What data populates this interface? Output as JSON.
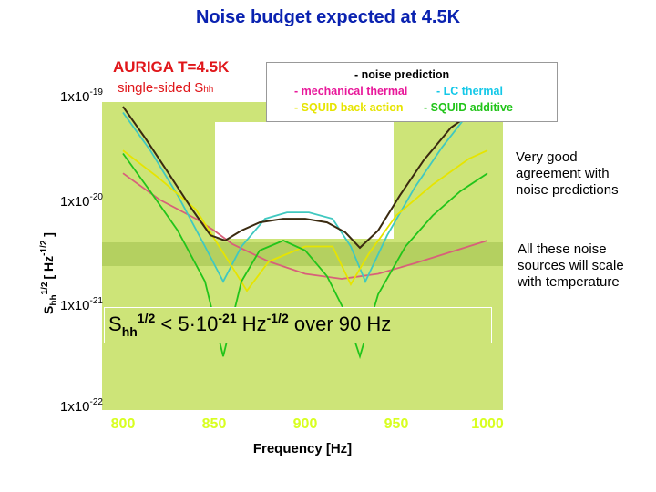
{
  "slide": {
    "title": "Noise budget expected at 4.5K",
    "note1": [
      "Very good",
      "agreement with",
      "noise predictions"
    ],
    "note2": [
      "All these noise",
      "sources will scale",
      "with temperature"
    ]
  },
  "plot": {
    "title": "AURIGA T=4.5K",
    "subtitle_main": "single-sided S",
    "subtitle_sub": "hh",
    "formula": {
      "s": "S",
      "s_sub": "hh",
      "exp1": "1/2",
      "middle": " < 5·10",
      "exp2": "-21",
      "hz": " Hz",
      "exp3": "-1/2",
      "tail": " over 90 Hz"
    }
  },
  "legend": {
    "title": "- noise prediction",
    "items": [
      {
        "label": "- mechanical thermal",
        "color": "#e8189a"
      },
      {
        "label": "- LC thermal",
        "color": "#14c8e8"
      },
      {
        "label": "- SQUID back action",
        "color": "#e6e400"
      },
      {
        "label": "- SQUID additive",
        "color": "#22c41a"
      }
    ]
  },
  "chart_data": {
    "type": "line",
    "x_label": "Frequency [Hz]",
    "y_label_main": "S",
    "y_label_sub": "hh",
    "y_label_exp": "1/2",
    "y_label_unit": "[ Hz",
    "y_label_unit_exp": "-1/2",
    "y_label_close": " ]",
    "xlim": [
      800,
      1000
    ],
    "ylim": [
      1e-22,
      1e-19
    ],
    "y_scale": "log",
    "x_ticks": [
      "800",
      "850",
      "900",
      "950",
      "1000"
    ],
    "y_ticks": [
      {
        "base": "1x10",
        "exp": "-19",
        "value": 1e-19
      },
      {
        "base": "1x10",
        "exp": "-20",
        "value": 1e-20
      },
      {
        "base": "1x10",
        "exp": "-21",
        "value": 1e-21
      },
      {
        "base": "1x10",
        "exp": "-22",
        "value": 1e-22
      }
    ],
    "series": [
      {
        "name": "mechanical thermal",
        "color": "#d8607a",
        "x": [
          800,
          820,
          840,
          850,
          860,
          880,
          900,
          920,
          940,
          960,
          980,
          1000
        ],
        "y": [
          1.8e-20,
          1e-20,
          6.5e-21,
          5e-21,
          3.7e-21,
          2.5e-21,
          1.9e-21,
          1.7e-21,
          1.9e-21,
          2.4e-21,
          3.1e-21,
          4e-21
        ]
      },
      {
        "name": "LC thermal",
        "color": "#40c8c0",
        "x": [
          800,
          815,
          830,
          845,
          855,
          865,
          878,
          890,
          902,
          915,
          925,
          933,
          945,
          960,
          975,
          990,
          1000
        ],
        "y": [
          7e-20,
          3e-20,
          1.1e-20,
          3.5e-21,
          1.6e-21,
          3.5e-21,
          6.5e-21,
          7.5e-21,
          7.5e-21,
          6.5e-21,
          3.5e-21,
          1.6e-21,
          4.5e-21,
          1.3e-20,
          3.2e-20,
          7e-20,
          1.1e-19
        ]
      },
      {
        "name": "SQUID back action",
        "color": "#e6e400",
        "x": [
          800,
          820,
          840,
          860,
          868,
          880,
          900,
          915,
          925,
          935,
          950,
          970,
          990,
          1000
        ],
        "y": [
          3e-20,
          1.6e-20,
          8e-21,
          2.2e-21,
          1.3e-21,
          2.5e-21,
          3.5e-21,
          3.5e-21,
          1.5e-21,
          3e-21,
          7e-21,
          1.4e-20,
          2.5e-20,
          3e-20
        ]
      },
      {
        "name": "SQUID additive",
        "color": "#22c41a",
        "x": [
          800,
          815,
          830,
          845,
          855,
          865,
          875,
          888,
          900,
          912,
          922,
          930,
          940,
          955,
          970,
          985,
          1000
        ],
        "y": [
          2.8e-20,
          1.2e-20,
          5e-21,
          1.6e-21,
          3e-22,
          1.6e-21,
          3.2e-21,
          4e-21,
          3.2e-21,
          1.8e-21,
          8e-22,
          3e-22,
          1.2e-21,
          3.5e-21,
          7e-21,
          1.2e-20,
          1.8e-20
        ]
      },
      {
        "name": "noise prediction",
        "color": "#3a2a10",
        "x": [
          800,
          812,
          825,
          838,
          848,
          856,
          865,
          875,
          888,
          900,
          912,
          922,
          930,
          940,
          952,
          965,
          980,
          1000
        ],
        "y": [
          8e-20,
          4e-20,
          1.8e-20,
          8e-21,
          4.5e-21,
          4e-21,
          5e-21,
          6e-21,
          6.5e-21,
          6.5e-21,
          6e-21,
          4.8e-21,
          3.4e-21,
          5e-21,
          1.1e-20,
          2.4e-20,
          5e-20,
          1.1e-19
        ]
      }
    ]
  }
}
